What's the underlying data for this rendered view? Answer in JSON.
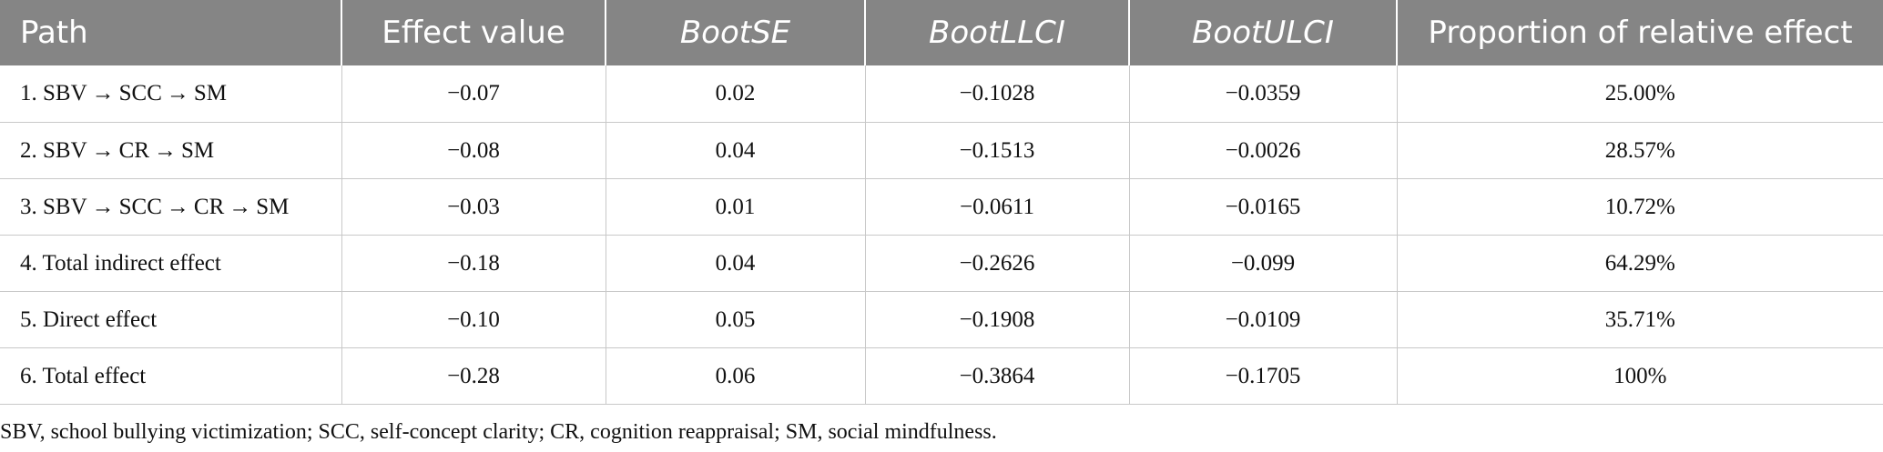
{
  "table": {
    "headers": [
      {
        "label": "Path",
        "italic": false
      },
      {
        "label": "Effect value",
        "italic": false
      },
      {
        "label": "BootSE",
        "italic": true
      },
      {
        "label": "BootLLCI",
        "italic": true
      },
      {
        "label": "BootULCI",
        "italic": true
      },
      {
        "label": "Proportion of relative effect",
        "italic": false
      }
    ],
    "rows": [
      {
        "path": "1. SBV → SCC → SM",
        "effect": "−0.07",
        "boot_se": "0.02",
        "boot_llci": "−0.1028",
        "boot_ulci": "−0.0359",
        "proportion": "25.00%"
      },
      {
        "path": "2. SBV → CR → SM",
        "effect": "−0.08",
        "boot_se": "0.04",
        "boot_llci": "−0.1513",
        "boot_ulci": "−0.0026",
        "proportion": "28.57%"
      },
      {
        "path": "3. SBV → SCC → CR → SM",
        "effect": "−0.03",
        "boot_se": "0.01",
        "boot_llci": "−0.0611",
        "boot_ulci": "−0.0165",
        "proportion": "10.72%"
      },
      {
        "path": "4. Total indirect effect",
        "effect": "−0.18",
        "boot_se": "0.04",
        "boot_llci": "−0.2626",
        "boot_ulci": "−0.099",
        "proportion": "64.29%"
      },
      {
        "path": "5. Direct effect",
        "effect": "−0.10",
        "boot_se": "0.05",
        "boot_llci": "−0.1908",
        "boot_ulci": "−0.0109",
        "proportion": "35.71%"
      },
      {
        "path": "6. Total effect",
        "effect": "−0.28",
        "boot_se": "0.06",
        "boot_llci": "−0.3864",
        "boot_ulci": "−0.1705",
        "proportion": "100%"
      }
    ]
  },
  "footnote": "SBV, school bullying victimization; SCC, self-concept clarity; CR, cognition reappraisal; SM, social mindfulness.",
  "colors": {
    "header_bg": "#858585",
    "header_text": "#ffffff",
    "grid": "#c8c8c8"
  }
}
